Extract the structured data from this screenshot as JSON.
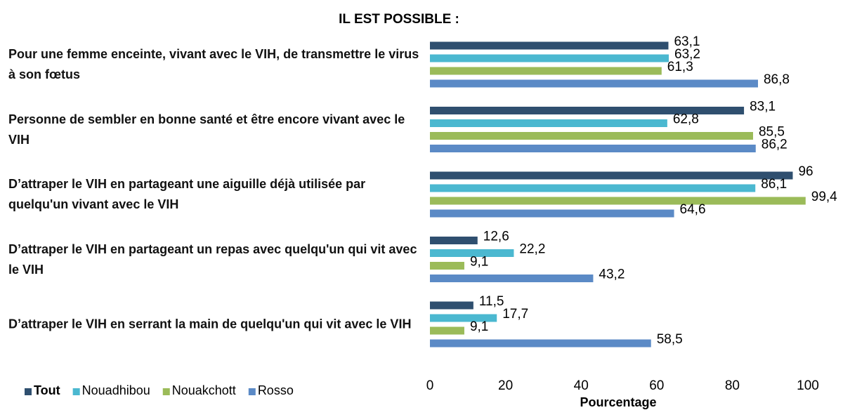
{
  "chart_data": {
    "type": "hbar",
    "title": "IL EST POSSIBLE :",
    "xlabel": "Pourcentage",
    "categories": [
      "Pour une femme enceinte, vivant avec le VIH, de transmettre le virus à son fœtus",
      "Personne de  sembler en bonne santé et être encore vivant avec le VIH",
      "D’attraper le VIH en partageant une aiguille déjà utilisée par quelqu'un vivant avec le VIH",
      "D’attraper le VIH en partageant un repas avec quelqu'un qui vit avec le VIH",
      "D’attraper le VIH en serrant la main de quelqu'un qui vit avec le VIH"
    ],
    "series": [
      {
        "name": "Tout",
        "color": "#2f4f6f",
        "values": [
          63.1,
          83.1,
          96,
          12.6,
          11.5
        ],
        "value_labels": [
          "63,1",
          "83,1",
          "96",
          "12,6",
          "11,5"
        ]
      },
      {
        "name": "Nouadhibou",
        "color": "#4bb8d0",
        "values": [
          63.2,
          62.8,
          86.1,
          22.2,
          17.7
        ],
        "value_labels": [
          "63,2",
          "62,8",
          "86,1",
          "22,2",
          "17,7"
        ]
      },
      {
        "name": "Nouakchott",
        "color": "#9bbb59",
        "values": [
          61.3,
          85.5,
          99.4,
          9.1,
          9.1
        ],
        "value_labels": [
          "61,3",
          "85,5",
          "99,4",
          "9,1",
          "9,1"
        ]
      },
      {
        "name": "Rosso",
        "color": "#5b8ac6",
        "values": [
          86.8,
          86.2,
          64.6,
          43.2,
          58.5
        ],
        "value_labels": [
          "86,8",
          "86,2",
          "64,6",
          "43,2",
          "58,5"
        ]
      }
    ],
    "xlim": [
      0,
      100
    ],
    "xticks": [
      0,
      20,
      40,
      60,
      80,
      100
    ]
  }
}
